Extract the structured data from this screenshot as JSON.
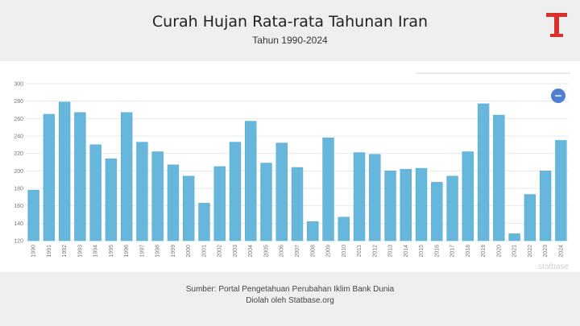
{
  "header": {
    "title": "Curah Hujan Rata-rata Tahunan Iran",
    "subtitle": "Tahun 1990-2024"
  },
  "footer": {
    "source": "Sumber: Portal Pengetahuan Perubahan Iklim  Bank Dunia",
    "credit": "Diolah oleh Statbase.org"
  },
  "watermark": "statbase",
  "colors": {
    "bar": "#67b7dc",
    "logo": "#d9302c",
    "button": "#4f7fd0"
  },
  "chart_data": {
    "type": "bar",
    "title": "",
    "xlabel": "",
    "ylabel": "",
    "ylim": [
      120,
      300
    ],
    "yticks": [
      120,
      140,
      160,
      180,
      200,
      220,
      240,
      260,
      280,
      300
    ],
    "grid": true,
    "categories": [
      "1990",
      "1991",
      "1992",
      "1993",
      "1994",
      "1995",
      "1996",
      "1997",
      "1998",
      "1999",
      "2000",
      "2001",
      "2002",
      "2003",
      "2004",
      "2005",
      "2006",
      "2007",
      "2008",
      "2009",
      "2010",
      "2011",
      "2012",
      "2013",
      "2014",
      "2015",
      "2016",
      "2017",
      "2018",
      "2019",
      "2020",
      "2021",
      "2022",
      "2023",
      "2024"
    ],
    "values": [
      178,
      265,
      279,
      267,
      230,
      214,
      267,
      233,
      222,
      207,
      194,
      163,
      205,
      233,
      257,
      209,
      232,
      204,
      142,
      238,
      147,
      221,
      219,
      200,
      202,
      203,
      187,
      194,
      222,
      277,
      264,
      128,
      173,
      200,
      235
    ]
  }
}
